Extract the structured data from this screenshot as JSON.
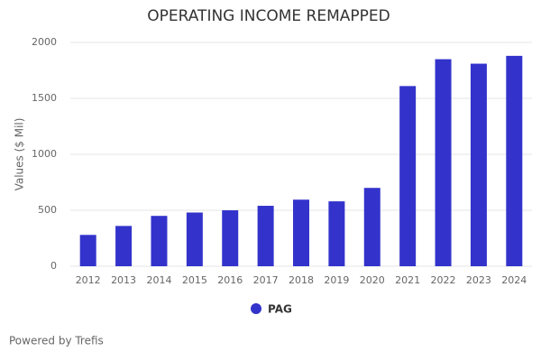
{
  "chart_data": {
    "type": "bar",
    "title": "OPERATING INCOME REMAPPED",
    "y_label": "Values ($ Mil)",
    "categories": [
      "2012",
      "2013",
      "2014",
      "2015",
      "2016",
      "2017",
      "2018",
      "2019",
      "2020",
      "2021",
      "2022",
      "2023",
      "2024"
    ],
    "series": [
      {
        "name": "PAG",
        "color": "#3333cc",
        "values": [
          280,
          360,
          450,
          480,
          500,
          540,
          595,
          580,
          700,
          1610,
          1850,
          1810,
          1880
        ]
      }
    ],
    "ylim": [
      0,
      2000
    ],
    "yticks": [
      0,
      500,
      1000,
      1500,
      2000
    ],
    "grid": true,
    "legend": "bottom"
  },
  "footer": "Powered by Trefis"
}
